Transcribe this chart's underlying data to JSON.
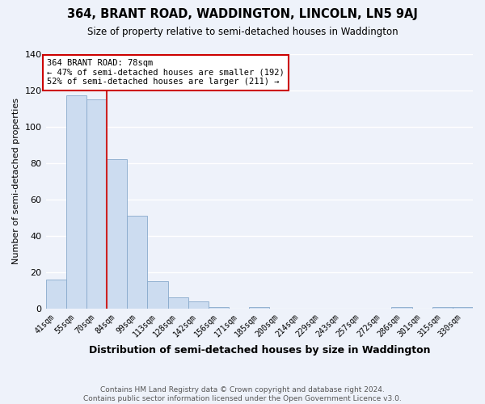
{
  "title": "364, BRANT ROAD, WADDINGTON, LINCOLN, LN5 9AJ",
  "subtitle": "Size of property relative to semi-detached houses in Waddington",
  "xlabel": "Distribution of semi-detached houses by size in Waddington",
  "ylabel": "Number of semi-detached properties",
  "bin_labels": [
    "41sqm",
    "55sqm",
    "70sqm",
    "84sqm",
    "99sqm",
    "113sqm",
    "128sqm",
    "142sqm",
    "156sqm",
    "171sqm",
    "185sqm",
    "200sqm",
    "214sqm",
    "229sqm",
    "243sqm",
    "257sqm",
    "272sqm",
    "286sqm",
    "301sqm",
    "315sqm",
    "330sqm"
  ],
  "bar_heights": [
    16,
    117,
    115,
    82,
    51,
    15,
    6,
    4,
    1,
    0,
    1,
    0,
    0,
    0,
    0,
    0,
    0,
    1,
    0,
    1,
    1
  ],
  "bar_color": "#ccdcf0",
  "bar_edge_color": "#88aacc",
  "property_line_index": 3,
  "property_sqm": 78,
  "annotation_title": "364 BRANT ROAD: 78sqm",
  "annotation_line1": "← 47% of semi-detached houses are smaller (192)",
  "annotation_line2": "52% of semi-detached houses are larger (211) →",
  "annotation_box_color": "#ffffff",
  "annotation_box_edge": "#cc0000",
  "property_line_color": "#cc2222",
  "ylim": [
    0,
    140
  ],
  "yticks": [
    0,
    20,
    40,
    60,
    80,
    100,
    120,
    140
  ],
  "footer_line1": "Contains HM Land Registry data © Crown copyright and database right 2024.",
  "footer_line2": "Contains public sector information licensed under the Open Government Licence v3.0.",
  "background_color": "#eef2fa",
  "grid_color": "#ffffff"
}
